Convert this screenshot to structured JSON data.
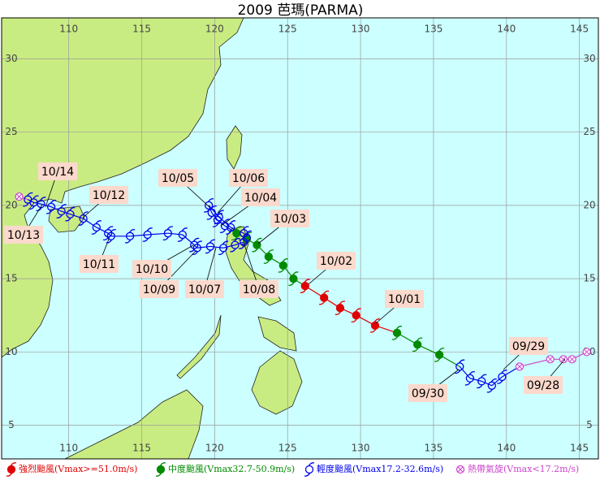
{
  "chart_data": {
    "type": "track-map",
    "title": "2009 芭瑪(PARMA)",
    "xlim": [
      105.4,
      146.3
    ],
    "ylim": [
      2.7,
      32.8
    ],
    "xticks": [
      110,
      115,
      120,
      125,
      130,
      135,
      140,
      145
    ],
    "yticks": [
      5,
      10,
      15,
      20,
      25,
      30
    ],
    "grid": true,
    "classes": [
      {
        "name": "強烈颱風(Vmax>=51.0m/s)",
        "color": "#e00000"
      },
      {
        "name": "中度颱風(Vmax32.7-50.9m/s)",
        "color": "#008a00"
      },
      {
        "name": "輕度颱風(Vmax17.2-32.6m/s)",
        "color": "#0000ee"
      },
      {
        "name": "熱帶氣旋(Vmax<17.2m/s)",
        "color": "#cc44cc"
      }
    ],
    "track": [
      {
        "lon": 145.5,
        "lat": 10.0,
        "class": 3
      },
      {
        "lon": 144.5,
        "lat": 9.5,
        "class": 3
      },
      {
        "lon": 143.9,
        "lat": 9.5,
        "class": 3
      },
      {
        "lon": 143.0,
        "lat": 9.5,
        "class": 3
      },
      {
        "lon": 140.9,
        "lat": 9.0,
        "class": 3
      },
      {
        "lon": 139.7,
        "lat": 8.3,
        "class": 2
      },
      {
        "lon": 139.0,
        "lat": 7.7,
        "class": 2
      },
      {
        "lon": 138.3,
        "lat": 8.0,
        "class": 2
      },
      {
        "lon": 137.5,
        "lat": 8.2,
        "class": 2
      },
      {
        "lon": 136.8,
        "lat": 9.0,
        "class": 2
      },
      {
        "lon": 135.4,
        "lat": 9.8,
        "class": 1
      },
      {
        "lon": 133.9,
        "lat": 10.5,
        "class": 1
      },
      {
        "lon": 132.5,
        "lat": 11.3,
        "class": 1
      },
      {
        "lon": 131.0,
        "lat": 11.8,
        "class": 0
      },
      {
        "lon": 129.7,
        "lat": 12.5,
        "class": 0
      },
      {
        "lon": 128.6,
        "lat": 13.0,
        "class": 0
      },
      {
        "lon": 127.5,
        "lat": 13.7,
        "class": 0
      },
      {
        "lon": 126.2,
        "lat": 14.5,
        "class": 0
      },
      {
        "lon": 125.4,
        "lat": 15.0,
        "class": 1
      },
      {
        "lon": 124.7,
        "lat": 15.9,
        "class": 1
      },
      {
        "lon": 123.7,
        "lat": 16.5,
        "class": 1
      },
      {
        "lon": 122.9,
        "lat": 17.3,
        "class": 1
      },
      {
        "lon": 122.2,
        "lat": 17.7,
        "class": 1
      },
      {
        "lon": 121.5,
        "lat": 18.1,
        "class": 1
      },
      {
        "lon": 120.7,
        "lat": 18.6,
        "class": 2
      },
      {
        "lon": 120.2,
        "lat": 19.0,
        "class": 2
      },
      {
        "lon": 119.8,
        "lat": 19.5,
        "class": 2
      },
      {
        "lon": 119.6,
        "lat": 20.0,
        "class": 2
      },
      {
        "lon": 120.3,
        "lat": 19.2,
        "class": 2
      },
      {
        "lon": 121.1,
        "lat": 18.5,
        "class": 2
      },
      {
        "lon": 122.0,
        "lat": 18.1,
        "class": 2
      },
      {
        "lon": 122.2,
        "lat": 17.8,
        "class": 2
      },
      {
        "lon": 122.0,
        "lat": 17.5,
        "class": 2
      },
      {
        "lon": 121.4,
        "lat": 17.3,
        "class": 2
      },
      {
        "lon": 120.6,
        "lat": 17.1,
        "class": 2
      },
      {
        "lon": 119.7,
        "lat": 17.2,
        "class": 2
      },
      {
        "lon": 118.8,
        "lat": 17.1,
        "class": 2
      },
      {
        "lon": 118.6,
        "lat": 17.3,
        "class": 2
      },
      {
        "lon": 117.8,
        "lat": 18.0,
        "class": 2
      },
      {
        "lon": 116.8,
        "lat": 18.1,
        "class": 2
      },
      {
        "lon": 115.4,
        "lat": 18.0,
        "class": 2
      },
      {
        "lon": 114.2,
        "lat": 17.9,
        "class": 2
      },
      {
        "lon": 112.9,
        "lat": 17.9,
        "class": 2
      },
      {
        "lon": 112.7,
        "lat": 18.1,
        "class": 2
      },
      {
        "lon": 111.9,
        "lat": 18.5,
        "class": 2
      },
      {
        "lon": 111.0,
        "lat": 19.1,
        "class": 2
      },
      {
        "lon": 110.1,
        "lat": 19.4,
        "class": 2
      },
      {
        "lon": 109.5,
        "lat": 19.6,
        "class": 2
      },
      {
        "lon": 108.8,
        "lat": 19.9,
        "class": 2
      },
      {
        "lon": 108.1,
        "lat": 20.1,
        "class": 2
      },
      {
        "lon": 107.6,
        "lat": 20.2,
        "class": 2
      },
      {
        "lon": 107.2,
        "lat": 20.4,
        "class": 2
      },
      {
        "lon": 106.6,
        "lat": 20.6,
        "class": 3
      }
    ],
    "date_labels": [
      "09/28",
      "09/29",
      "09/30",
      "10/01",
      "10/02",
      "10/03",
      "10/04",
      "10/05",
      "10/06",
      "10/07",
      "10/08",
      "10/09",
      "10/10",
      "10/11",
      "10/12",
      "10/13",
      "10/14"
    ]
  }
}
